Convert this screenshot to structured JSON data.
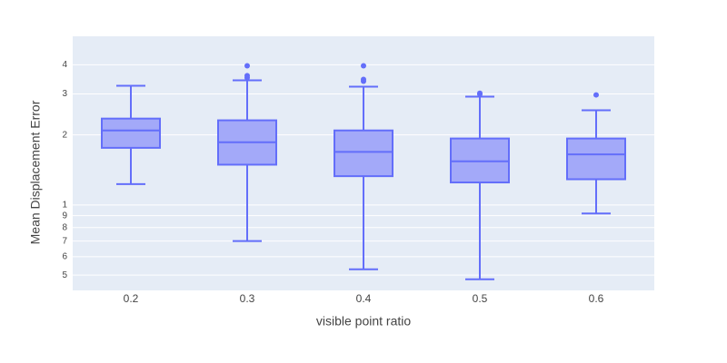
{
  "chart_data": {
    "type": "box",
    "x_label": "visible point ratio",
    "y_label": "Mean Displacement Error",
    "categories": [
      "0.2",
      "0.3",
      "0.4",
      "0.5",
      "0.6"
    ],
    "color": "#636efa",
    "fill": "#a3a9f9",
    "log_y": true,
    "grid": true,
    "ylim": [
      0.43,
      5.3
    ],
    "yticks": [
      {
        "value": 0.5,
        "label": "5"
      },
      {
        "value": 0.6,
        "label": "6"
      },
      {
        "value": 0.7,
        "label": "7"
      },
      {
        "value": 0.8,
        "label": "8"
      },
      {
        "value": 0.9,
        "label": "9"
      },
      1,
      2,
      3,
      4
    ],
    "boxes": [
      {
        "lower": 1.23,
        "q1": 1.76,
        "median": 2.09,
        "q3": 2.35,
        "upper": 3.25,
        "outliers": []
      },
      {
        "lower": 0.7,
        "q1": 1.49,
        "median": 1.86,
        "q3": 2.31,
        "upper": 3.43,
        "outliers": [
          3.96,
          3.59,
          3.52
        ]
      },
      {
        "lower": 0.53,
        "q1": 1.33,
        "median": 1.69,
        "q3": 2.09,
        "upper": 3.22,
        "outliers": [
          3.96,
          3.46,
          3.4
        ]
      },
      {
        "lower": 0.48,
        "q1": 1.25,
        "median": 1.54,
        "q3": 1.93,
        "upper": 2.92,
        "outliers": [
          3.02,
          2.99
        ]
      },
      {
        "lower": 0.92,
        "q1": 1.29,
        "median": 1.65,
        "q3": 1.93,
        "upper": 2.55,
        "outliers": [
          2.97
        ]
      }
    ]
  }
}
